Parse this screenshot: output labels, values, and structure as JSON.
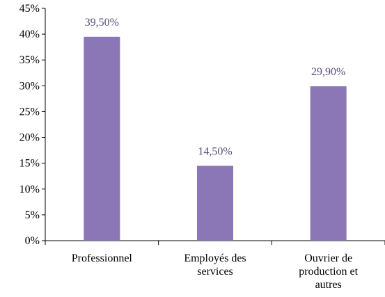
{
  "chart_data": {
    "type": "bar",
    "categories": [
      [
        "Professionnel"
      ],
      [
        "Employés des",
        "services"
      ],
      [
        "Ouvrier de",
        "production et",
        "autres"
      ]
    ],
    "values": [
      39.5,
      14.5,
      29.9
    ],
    "data_labels": [
      "39,50%",
      "14,50%",
      "29,90%"
    ],
    "y_ticks": [
      0,
      5,
      10,
      15,
      20,
      25,
      30,
      35,
      40,
      45
    ],
    "y_tick_labels": [
      "0%",
      "5%",
      "10%",
      "15%",
      "20%",
      "25%",
      "30%",
      "35%",
      "40%",
      "45%"
    ],
    "ylim": [
      0,
      45
    ],
    "grid": false,
    "legend": "none",
    "bar_color": "#8B77B5",
    "label_color": "#5A4A78"
  }
}
